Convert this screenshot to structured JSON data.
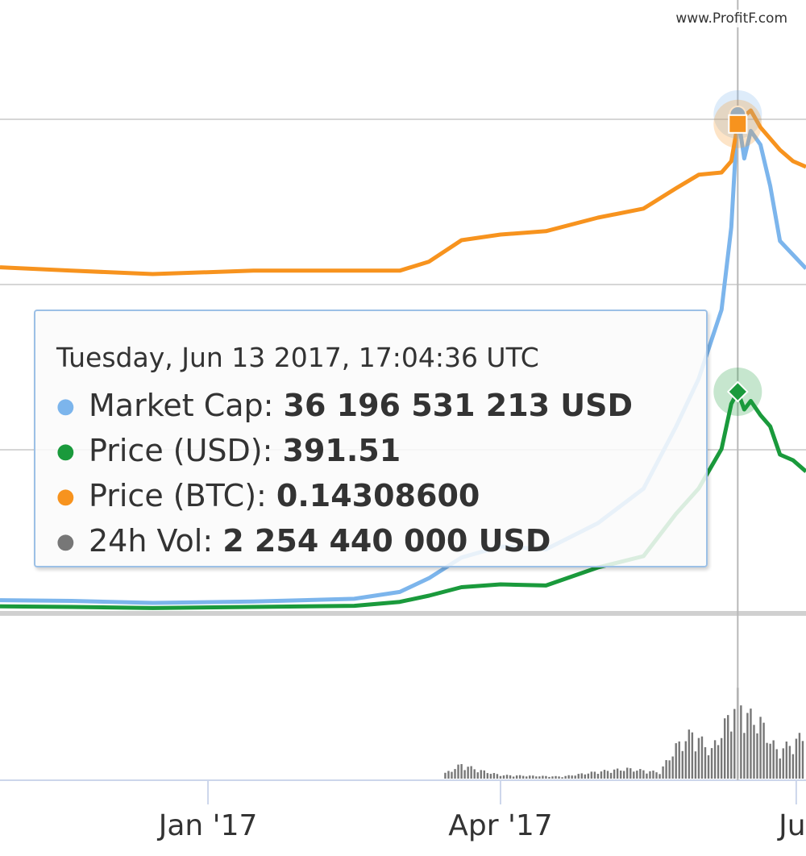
{
  "watermark": "www.ProfitF.com",
  "tooltip": {
    "date": "Tuesday, Jun 13 2017, 17:04:36 UTC",
    "rows": [
      {
        "name": "Market Cap",
        "value": "36 196 531 213 USD",
        "color": "#7cb5ec"
      },
      {
        "name": "Price (USD)",
        "value": "391.51",
        "color": "#1a9a3c"
      },
      {
        "name": "Price (BTC)",
        "value": "0.14308600",
        "color": "#f7931e"
      },
      {
        "name": "24h Vol",
        "value": "2 254 440 000 USD",
        "color": "#777777"
      }
    ]
  },
  "chart_data": {
    "type": "line",
    "x_ticks": [
      "Jan '17",
      "Apr '17",
      "Jul"
    ],
    "x_range": [
      "2016-10-29",
      "2017-07-04"
    ],
    "highlighted_date": "2017-06-13",
    "grid": true,
    "series": [
      {
        "name": "Market Cap",
        "color": "#7cb5ec",
        "unit": "billion USD",
        "x": [
          "2016-10-29",
          "2016-11-20",
          "2016-12-15",
          "2017-01-15",
          "2017-02-15",
          "2017-03-01",
          "2017-03-10",
          "2017-03-20",
          "2017-04-01",
          "2017-04-15",
          "2017-05-01",
          "2017-05-15",
          "2017-05-25",
          "2017-06-01",
          "2017-06-08",
          "2017-06-11",
          "2017-06-13",
          "2017-06-15",
          "2017-06-17",
          "2017-06-20",
          "2017-06-23",
          "2017-06-26",
          "2017-06-30",
          "2017-07-04"
        ],
        "values": [
          0.9,
          0.85,
          0.7,
          0.8,
          1.0,
          1.5,
          2.5,
          4.0,
          4.8,
          4.6,
          6.5,
          9.0,
          13.5,
          17,
          22,
          28,
          36.2,
          33,
          35,
          34,
          31,
          27,
          26,
          25
        ]
      },
      {
        "name": "Price (USD)",
        "color": "#1a9a3c",
        "unit": "USD",
        "x": [
          "2016-10-29",
          "2016-11-20",
          "2016-12-15",
          "2017-01-15",
          "2017-02-15",
          "2017-03-01",
          "2017-03-10",
          "2017-03-20",
          "2017-04-01",
          "2017-04-15",
          "2017-05-01",
          "2017-05-15",
          "2017-05-25",
          "2017-06-01",
          "2017-06-08",
          "2017-06-11",
          "2017-06-13",
          "2017-06-15",
          "2017-06-17",
          "2017-06-20",
          "2017-06-23",
          "2017-06-26",
          "2017-06-30",
          "2017-07-04"
        ],
        "values": [
          11,
          10,
          8,
          10,
          12,
          19,
          30,
          45,
          50,
          48,
          80,
          100,
          175,
          220,
          290,
          370,
          391.51,
          360,
          375,
          350,
          330,
          280,
          270,
          250
        ]
      },
      {
        "name": "Price (BTC)",
        "color": "#f7931e",
        "unit": "BTC",
        "x": [
          "2016-10-29",
          "2016-11-20",
          "2016-12-15",
          "2017-01-15",
          "2017-02-15",
          "2017-03-01",
          "2017-03-10",
          "2017-03-20",
          "2017-04-01",
          "2017-04-15",
          "2017-05-01",
          "2017-05-15",
          "2017-05-25",
          "2017-06-01",
          "2017-06-08",
          "2017-06-11",
          "2017-06-13",
          "2017-06-15",
          "2017-06-17",
          "2017-06-20",
          "2017-06-23",
          "2017-06-26",
          "2017-06-30",
          "2017-07-04"
        ],
        "values": [
          0.016,
          0.013,
          0.01,
          0.013,
          0.013,
          0.013,
          0.021,
          0.04,
          0.045,
          0.048,
          0.06,
          0.068,
          0.086,
          0.098,
          0.1,
          0.11,
          0.143,
          0.15,
          0.155,
          0.14,
          0.13,
          0.12,
          0.11,
          0.105
        ]
      },
      {
        "name": "24h Vol",
        "color": "#777777",
        "unit": "USD",
        "x": [
          "2017-03-15",
          "2017-03-20",
          "2017-03-25",
          "2017-04-01",
          "2017-04-10",
          "2017-04-20",
          "2017-05-01",
          "2017-05-10",
          "2017-05-20",
          "2017-05-25",
          "2017-05-30",
          "2017-06-05",
          "2017-06-10",
          "2017-06-13",
          "2017-06-16",
          "2017-06-20",
          "2017-06-25",
          "2017-06-30",
          "2017-07-04"
        ],
        "values": [
          150000000,
          400000000,
          250000000,
          100000000,
          80000000,
          60000000,
          200000000,
          280000000,
          180000000,
          900000000,
          1300000000,
          800000000,
          1700000000,
          2254440000,
          1800000000,
          1600000000,
          800000000,
          1000000000,
          1300000000
        ]
      }
    ]
  },
  "style": {
    "grid_color": "#d6d6d6",
    "axis_color": "#ccd6eb",
    "tick_label_color": "#333333"
  }
}
